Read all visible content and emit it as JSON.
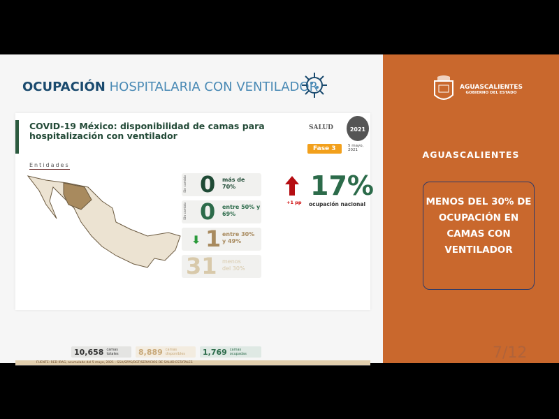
{
  "slide_title": {
    "bold": "OCUPACIÓN",
    "rest": "HOSPITALARIA CON VENTILADOR"
  },
  "card": {
    "heading": "COVID-19 México: disponibilidad de camas para hospitalización con ventilador",
    "salud": "SALUD",
    "seal": "2021",
    "fase": "Fase 3",
    "date": "5 mayo, 2021",
    "entidades": "Entidades",
    "stats": [
      {
        "side": "Sin cambio",
        "num": "0",
        "label": "más de 70%",
        "color": "#1f4a35"
      },
      {
        "side": "Sin cambio",
        "num": "0",
        "label": "entre 50% y 69%",
        "color": "#2c6b4a"
      },
      {
        "side": "",
        "num": "1",
        "label": "entre 30% y 49%",
        "color": "#a88a5e"
      },
      {
        "side": "",
        "num": "31",
        "label": "menos del 30%",
        "color": "#d8c9aa"
      }
    ],
    "national_pct": "17%",
    "national_label": "ocupación nacional",
    "change": "+1 pp",
    "totals": [
      {
        "num": "10,658",
        "label": "camas totales",
        "bg": "#e4e4e2",
        "color": "#333"
      },
      {
        "num": "8,889",
        "label": "camas disponibles",
        "bg": "#f3ece0",
        "color": "#c8a97a"
      },
      {
        "num": "1,769",
        "label": "camas ocupadas",
        "bg": "#dfe9e4",
        "color": "#2c6b4a"
      }
    ],
    "source": "FUENTE: RED IRAG, acumulado del 5 mayo, 2021 - SSA/SPPS/DGT/SERVICIOS DE SALUD ESTATALES"
  },
  "right": {
    "logo_name": "AGUASCALIENTES",
    "logo_sub": "GOBIERNO DEL ESTADO",
    "title": "AGUASCALIENTES",
    "message": "MENOS DEL 30% DE OCUPACIÓN EN CAMAS CON VENTILADOR",
    "page": "7/12"
  },
  "colors": {
    "orange": "#c9682d",
    "green": "#2c6b4a",
    "navy": "#1a4a6e"
  }
}
